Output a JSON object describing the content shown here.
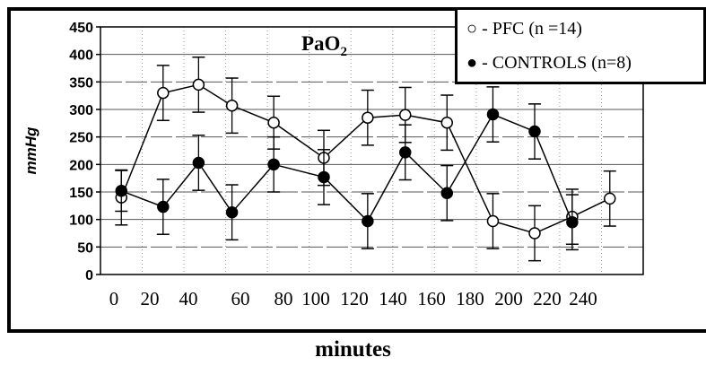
{
  "chart_data": {
    "type": "line",
    "title": "PaO",
    "title_subscript": "2",
    "xlabel": "minutes",
    "ylabel": "mmHg",
    "ylim": [
      0,
      450
    ],
    "yticks": [
      "0",
      "50",
      "100",
      "150",
      "200",
      "250",
      "300",
      "350",
      "400",
      "450"
    ],
    "xticks": [
      "0",
      "20",
      "40",
      "60",
      "80",
      "100",
      "120",
      "140",
      "160",
      "180",
      "200",
      "220",
      "240"
    ],
    "grid": true,
    "legend_position": "top-right",
    "series": [
      {
        "name": "PFC (n =14)",
        "legend_label": "○ - PFC (n =14)",
        "marker": "open-circle",
        "x": [
          10,
          30,
          47,
          63,
          83,
          107,
          128,
          146,
          166,
          188,
          208,
          226,
          244
        ],
        "y": [
          140,
          330,
          345,
          307,
          276,
          212,
          285,
          290,
          276,
          97,
          75,
          105,
          138
        ],
        "err": [
          50,
          50,
          50,
          50,
          48,
          50,
          50,
          50,
          50,
          50,
          50,
          50,
          50
        ]
      },
      {
        "name": "CONTROLS (n=8)",
        "legend_label": "● - CONTROLS (n=8)",
        "marker": "filled-circle",
        "x": [
          10,
          30,
          47,
          63,
          83,
          107,
          128,
          146,
          166,
          188,
          208,
          226
        ],
        "y": [
          152,
          123,
          203,
          113,
          200,
          177,
          97,
          222,
          148,
          291,
          260,
          95
        ],
        "err": [
          37,
          50,
          50,
          50,
          50,
          50,
          50,
          50,
          50,
          50,
          50,
          50
        ]
      }
    ]
  }
}
